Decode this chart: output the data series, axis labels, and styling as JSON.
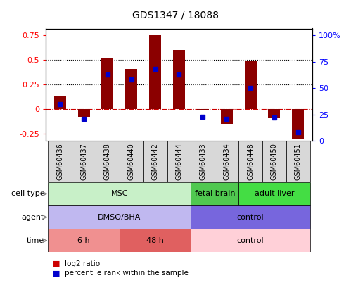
{
  "title": "GDS1347 / 18088",
  "samples": [
    "GSM60436",
    "GSM60437",
    "GSM60438",
    "GSM60440",
    "GSM60442",
    "GSM60444",
    "GSM60433",
    "GSM60434",
    "GSM60448",
    "GSM60450",
    "GSM60451"
  ],
  "log2_ratio": [
    0.13,
    -0.08,
    0.52,
    0.41,
    0.75,
    0.6,
    -0.01,
    -0.15,
    0.49,
    -0.09,
    -0.3
  ],
  "percentile_rank": [
    0.35,
    0.21,
    0.63,
    0.58,
    0.68,
    0.63,
    0.23,
    0.21,
    0.5,
    0.22,
    0.08
  ],
  "bar_color": "#8B0000",
  "dot_color": "#0000CC",
  "bar_width": 0.5,
  "ylim_left": [
    -0.32,
    0.82
  ],
  "ylim_right": [
    0,
    1.06667
  ],
  "yticks_left": [
    -0.25,
    0,
    0.25,
    0.5,
    0.75
  ],
  "yticks_right": [
    0,
    0.25,
    0.5,
    0.75,
    1.0
  ],
  "ytick_labels_left": [
    "-0.25",
    "0",
    "0.25",
    "0.5",
    "0.75"
  ],
  "ytick_labels_right": [
    "0",
    "25",
    "50",
    "75",
    "100%"
  ],
  "hline_y": 0,
  "dotline_vals": [
    0.25,
    0.5
  ],
  "cell_type_groups": [
    {
      "label": "MSC",
      "start": 0,
      "end": 6,
      "color": "#C8F0C8",
      "text_color": "black"
    },
    {
      "label": "fetal brain",
      "start": 6,
      "end": 8,
      "color": "#50C850",
      "text_color": "black"
    },
    {
      "label": "adult liver",
      "start": 8,
      "end": 11,
      "color": "#44DD44",
      "text_color": "black"
    }
  ],
  "agent_groups": [
    {
      "label": "DMSO/BHA",
      "start": 0,
      "end": 6,
      "color": "#C0B8F0",
      "text_color": "black"
    },
    {
      "label": "control",
      "start": 6,
      "end": 11,
      "color": "#7766DD",
      "text_color": "black"
    }
  ],
  "time_groups": [
    {
      "label": "6 h",
      "start": 0,
      "end": 3,
      "color": "#F09090",
      "text_color": "black"
    },
    {
      "label": "48 h",
      "start": 3,
      "end": 6,
      "color": "#E06060",
      "text_color": "black"
    },
    {
      "label": "control",
      "start": 6,
      "end": 11,
      "color": "#FFD0D8",
      "text_color": "black"
    }
  ],
  "row_labels": [
    "cell type",
    "agent",
    "time"
  ],
  "legend_items": [
    {
      "color": "#CC0000",
      "label": "log2 ratio"
    },
    {
      "color": "#0000CC",
      "label": "percentile rank within the sample"
    }
  ],
  "xtick_bg_color": "#D8D8D8",
  "background_color": "#FFFFFF"
}
